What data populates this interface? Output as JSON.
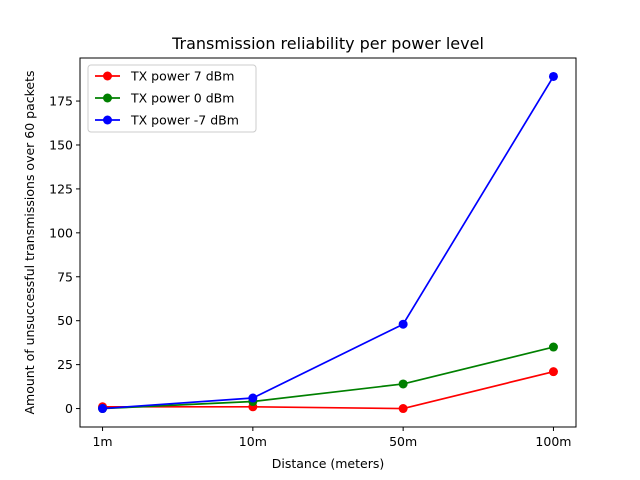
{
  "chart_data": {
    "type": "line",
    "title": "Transmission reliability per power level",
    "xlabel": "Distance (meters)",
    "ylabel": "Amount of unsuccessful transmissions over 60 packets",
    "categories": [
      "1m",
      "10m",
      "50m",
      "100m"
    ],
    "ylim": [
      -10.5,
      199.5
    ],
    "yticks": [
      0,
      25,
      50,
      75,
      100,
      125,
      150,
      175
    ],
    "grid": false,
    "legend_position": "top-left",
    "series": [
      {
        "name": "TX power 7 dBm",
        "color": "#ff0000",
        "marker": "circle",
        "values": [
          1,
          1,
          0,
          21
        ]
      },
      {
        "name": "TX power 0 dBm",
        "color": "#008000",
        "marker": "circle",
        "values": [
          0,
          4,
          14,
          35
        ]
      },
      {
        "name": "TX power -7 dBm",
        "color": "#0000ff",
        "marker": "circle",
        "values": [
          0,
          6,
          48,
          189
        ]
      }
    ]
  }
}
